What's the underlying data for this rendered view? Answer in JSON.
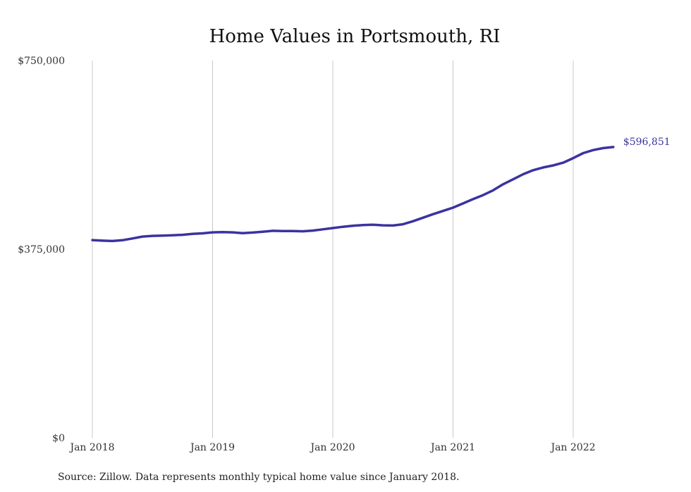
{
  "chart_data": {
    "type": "line",
    "title": "Home Values in Portsmouth, RI",
    "xlabel": "",
    "ylabel": "",
    "ylim": [
      0,
      750000
    ],
    "y_ticks": [
      {
        "value": 0,
        "label": "$0"
      },
      {
        "value": 375000,
        "label": "$375,000"
      },
      {
        "value": 750000,
        "label": "$750,000"
      }
    ],
    "x_ticks": [
      "Jan 2018",
      "Jan 2019",
      "Jan 2020",
      "Jan 2021",
      "Jan 2022"
    ],
    "grid": "vertical",
    "series": [
      {
        "color": "#3a33a0",
        "x": [
          "2018-01",
          "2018-02",
          "2018-03",
          "2018-04",
          "2018-05",
          "2018-06",
          "2018-07",
          "2018-08",
          "2018-09",
          "2018-10",
          "2018-11",
          "2018-12",
          "2019-01",
          "2019-02",
          "2019-03",
          "2019-04",
          "2019-05",
          "2019-06",
          "2019-07",
          "2019-08",
          "2019-09",
          "2019-10",
          "2019-11",
          "2019-12",
          "2020-01",
          "2020-02",
          "2020-03",
          "2020-04",
          "2020-05",
          "2020-06",
          "2020-07",
          "2020-08",
          "2020-09",
          "2020-10",
          "2020-11",
          "2020-12",
          "2021-01",
          "2021-02",
          "2021-03",
          "2021-04",
          "2021-05",
          "2021-06",
          "2021-07",
          "2021-08",
          "2021-09",
          "2021-10",
          "2021-11",
          "2021-12",
          "2022-01",
          "2022-02",
          "2022-03",
          "2022-04",
          "2022-05"
        ],
        "values": [
          393000,
          392000,
          391200,
          392800,
          396200,
          400000,
          401400,
          402000,
          402500,
          403500,
          405500,
          406500,
          408500,
          408800,
          408500,
          406800,
          408000,
          409500,
          411500,
          411000,
          411000,
          410500,
          412000,
          414500,
          417000,
          419500,
          421500,
          423000,
          423500,
          422500,
          422000,
          424500,
          430500,
          437500,
          444500,
          451000,
          457500,
          466000,
          474500,
          482500,
          492000,
          504000,
          514000,
          524000,
          532000,
          537500,
          541500,
          547000,
          556000,
          566000,
          572000,
          576000,
          578000
        ],
        "end_label": "$596,851"
      }
    ]
  },
  "source_note": "Source: Zillow. Data represents monthly typical home value since January 2018."
}
